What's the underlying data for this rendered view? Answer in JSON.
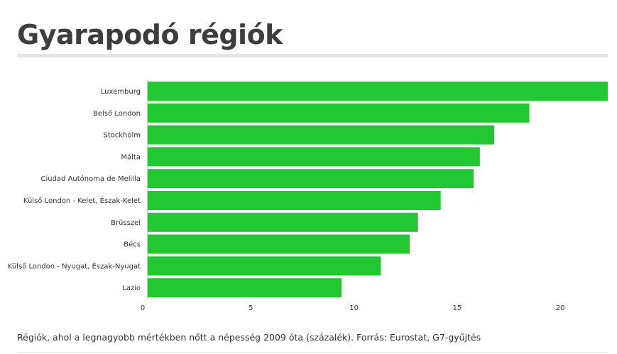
{
  "title": "Gyarapodó régiók",
  "caption": "Régiók, ahol a legnagyobb mértékben nőtt a népesség 2009 óta (százalék). Forrás: Eurostat, G7-gyűjtés",
  "colors": {
    "bar": "#22c832",
    "title_rule": "#e6e6e6",
    "text": "#333333"
  },
  "chart_data": {
    "type": "bar",
    "orientation": "horizontal",
    "categories": [
      "Luxemburg",
      "Belső London",
      "Stockholm",
      "Málta",
      "Ciudad Autónoma de Melilla",
      "Külső London - Kelet, Észak-Kelet",
      "Brüsszel",
      "Bécs",
      "Külső London - Nyugat, Észak-Nyugat",
      "Lazio"
    ],
    "values": [
      22.3,
      18.5,
      16.8,
      16.1,
      15.8,
      14.2,
      13.1,
      12.7,
      11.3,
      9.4
    ],
    "xticks": [
      "0",
      "5",
      "10",
      "15",
      "20"
    ],
    "xlim": [
      0,
      22.3
    ],
    "grid": false,
    "legend": "none"
  }
}
